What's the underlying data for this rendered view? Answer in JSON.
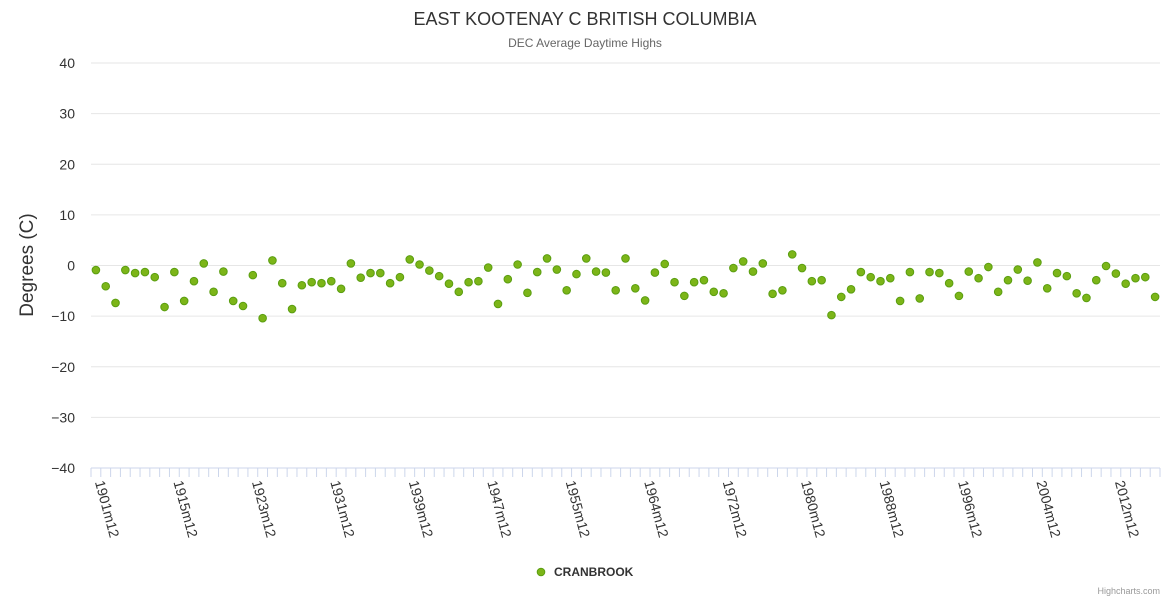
{
  "chart_data": {
    "type": "scatter",
    "title": "EAST KOOTENAY C BRITISH COLUMBIA",
    "subtitle": "DEC Average Daytime Highs",
    "ylabel": "Degrees (C)",
    "ylim": [
      -40,
      40
    ],
    "yticks": [
      40,
      30,
      20,
      10,
      0,
      -10,
      -20,
      -30,
      -40
    ],
    "y_tick_labels": [
      "40",
      "30",
      "20",
      "10",
      "0",
      "−10",
      "−20",
      "−30",
      "−40"
    ],
    "x_tick_labels": [
      "1901m12",
      "1915m12",
      "1923m12",
      "1931m12",
      "1939m12",
      "1947m12",
      "1955m12",
      "1964m12",
      "1972m12",
      "1980m12",
      "1988m12",
      "1996m12",
      "2004m12",
      "2012m12"
    ],
    "legend": "bottom-center",
    "grid": true,
    "series": [
      {
        "name": "CRANBROOK",
        "color": "#7cb518",
        "values": [
          -0.9,
          -4.1,
          -7.4,
          -0.9,
          -1.5,
          -1.3,
          -2.3,
          -8.2,
          -1.3,
          -7.0,
          -3.1,
          0.4,
          -5.2,
          -1.2,
          -7.0,
          -8.0,
          -1.9,
          -10.4,
          1.0,
          -3.5,
          -8.6,
          -3.9,
          -3.3,
          -3.5,
          -3.1,
          -4.6,
          0.4,
          -2.4,
          -1.5,
          -1.5,
          -3.5,
          -2.3,
          1.2,
          0.2,
          -1.0,
          -2.1,
          -3.6,
          -5.2,
          -3.3,
          -3.1,
          -0.4,
          -7.6,
          -2.7,
          0.2,
          -5.4,
          -1.3,
          1.4,
          -0.8,
          -4.9,
          -1.7,
          1.4,
          -1.2,
          -1.4,
          -4.9,
          1.4,
          -4.5,
          -6.9,
          -1.4,
          0.3,
          -3.3,
          -6.0,
          -3.3,
          -2.9,
          -5.2,
          -5.5,
          -0.5,
          0.8,
          -1.2,
          0.4,
          -5.6,
          -4.9,
          2.2,
          -0.5,
          -3.1,
          -2.9,
          -9.8,
          -6.2,
          -4.7,
          -1.3,
          -2.3,
          -3.1,
          -2.5,
          -7.0,
          -1.3,
          -6.5,
          -1.3,
          -1.5,
          -3.5,
          -6.0,
          -1.2,
          -2.5,
          -0.3,
          -5.2,
          -2.9,
          -0.8,
          -3.0,
          0.6,
          -4.5,
          -1.5,
          -2.1,
          -5.5,
          -6.4,
          -2.9,
          -0.1,
          -1.6,
          -3.6,
          -2.5,
          -2.3,
          -6.2
        ]
      }
    ]
  },
  "credits": "Highcharts.com"
}
